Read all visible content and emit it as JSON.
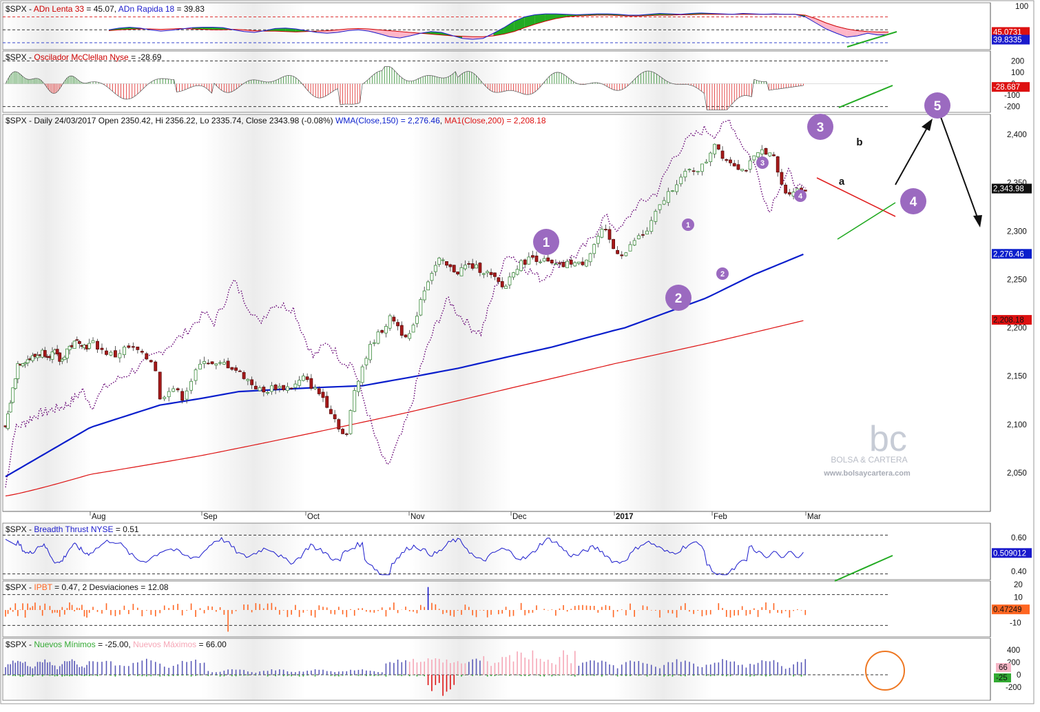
{
  "chart_data": [
    {
      "type": "line",
      "panel": "adn",
      "title_prefix": "$SPX - ",
      "series": [
        {
          "name": "ADn Lenta 33",
          "value_text": "= 45.07",
          "color": "#cc0000",
          "last_label": "45.0731"
        },
        {
          "name": "ADn Rapida 18",
          "value_text": "= 39.83",
          "color": "#1a1acc",
          "last_label": "39.8335"
        }
      ],
      "y_ticks": [
        "100"
      ],
      "levels": [
        80,
        50,
        20
      ],
      "fill_up_color": "#22aa22",
      "fill_down_color": "#ffb6c8",
      "series_values_slow": [
        48,
        50,
        51,
        52,
        52,
        51,
        52,
        53,
        52,
        51,
        50,
        50,
        51,
        50,
        48,
        47,
        47,
        46,
        45,
        46,
        47,
        48,
        50,
        52,
        53,
        52,
        50,
        48,
        46,
        44,
        42,
        40,
        38,
        36,
        35,
        34,
        34,
        36,
        40,
        46,
        55,
        63,
        70,
        76,
        80,
        82,
        83,
        84,
        84,
        83,
        82,
        82,
        83,
        84,
        84,
        85,
        85,
        86,
        86,
        86,
        86,
        86,
        86,
        86,
        86,
        86,
        86,
        84,
        76,
        66,
        58,
        52,
        48,
        46,
        45,
        45
      ],
      "series_values_fast": [
        50,
        54,
        56,
        54,
        50,
        47,
        49,
        52,
        55,
        56,
        56,
        55,
        50,
        46,
        44,
        48,
        53,
        54,
        52,
        48,
        44,
        42,
        44,
        48,
        50,
        47,
        41,
        34,
        31,
        36,
        42,
        46,
        44,
        37,
        30,
        28,
        30,
        42,
        55,
        70,
        80,
        85,
        87,
        87,
        86,
        85,
        86,
        87,
        87,
        86,
        84,
        84,
        86,
        88,
        87,
        86,
        88,
        89,
        88,
        87,
        86,
        88,
        87,
        86,
        87,
        86,
        86,
        80,
        66,
        52,
        42,
        33,
        36,
        42,
        38,
        39
      ]
    },
    {
      "type": "bar",
      "panel": "mcclellan",
      "title_prefix": "$SPX - ",
      "series_name": "Oscilador McClellan Nyse",
      "value_text": "= -28.69",
      "y_ticks": [
        "200",
        "100",
        "0",
        "-100",
        "-200"
      ],
      "last_label": "-28.687",
      "levels": [
        200,
        -200
      ],
      "positive_color": "#2a8a2a",
      "negative_color": "#dd2222"
    },
    {
      "type": "candlestick",
      "panel": "price",
      "title": "$SPX - Daily 24/03/2017 Open 2350.42, Hi 2356.22, Lo 2335.74, Close 2343.98 (-0.08%)",
      "wma_label": "WMA(Close,150) = 2,276.46",
      "ma_label": "MA1(Close,200) = 2,208.18",
      "wma_color": "#0a1ecc",
      "ma_color": "#dd1111",
      "breadth_overlay_color": "#6a0a78",
      "up_color": "#3a8a3a",
      "down_color": "#a81a1a",
      "y_ticks": [
        "2,400",
        "2,350",
        "2,300",
        "2,250",
        "2,200",
        "2,150",
        "2,100",
        "2,050"
      ],
      "y_values": [
        2400,
        2350,
        2300,
        2250,
        2200,
        2150,
        2100,
        2050
      ],
      "ylim": [
        2020,
        2440
      ],
      "x_labels": [
        "Aug",
        "Sep",
        "Oct",
        "Nov",
        "Dec",
        "2017",
        "Feb",
        "Mar"
      ],
      "last_close_label": "2,343.98",
      "wma_last_label": "2,276.46",
      "ma_last_label": "2,208.18",
      "close_path": [
        [
          0,
          2097
        ],
        [
          4,
          2130
        ],
        [
          8,
          2163
        ],
        [
          12,
          2166
        ],
        [
          16,
          2168
        ],
        [
          20,
          2171
        ],
        [
          24,
          2175
        ],
        [
          28,
          2172
        ],
        [
          32,
          2174
        ],
        [
          36,
          2164
        ],
        [
          40,
          2178
        ],
        [
          44,
          2183
        ],
        [
          48,
          2187
        ],
        [
          52,
          2180
        ],
        [
          56,
          2184
        ],
        [
          60,
          2175
        ],
        [
          64,
          2171
        ],
        [
          68,
          2180
        ],
        [
          72,
          2176
        ],
        [
          74,
          2170
        ],
        [
          78,
          2165
        ],
        [
          80,
          2125
        ],
        [
          84,
          2140
        ],
        [
          88,
          2128
        ],
        [
          92,
          2150
        ],
        [
          96,
          2168
        ],
        [
          100,
          2160
        ],
        [
          104,
          2163
        ],
        [
          108,
          2158
        ],
        [
          112,
          2150
        ],
        [
          116,
          2140
        ],
        [
          120,
          2133
        ],
        [
          124,
          2139
        ],
        [
          128,
          2138
        ],
        [
          132,
          2139
        ],
        [
          136,
          2148
        ],
        [
          140,
          2138
        ],
        [
          144,
          2128
        ],
        [
          148,
          2110
        ],
        [
          152,
          2090
        ],
        [
          154,
          2088
        ],
        [
          156,
          2130
        ],
        [
          160,
          2160
        ],
        [
          164,
          2185
        ],
        [
          168,
          2198
        ],
        [
          172,
          2212
        ],
        [
          176,
          2195
        ],
        [
          180,
          2192
        ],
        [
          184,
          2230
        ],
        [
          188,
          2255
        ],
        [
          192,
          2270
        ],
        [
          196,
          2262
        ],
        [
          200,
          2258
        ],
        [
          204,
          2265
        ],
        [
          208,
          2262
        ],
        [
          212,
          2258
        ],
        [
          216,
          2250
        ],
        [
          220,
          2240
        ],
        [
          224,
          2260
        ],
        [
          228,
          2268
        ],
        [
          232,
          2273
        ],
        [
          236,
          2270
        ],
        [
          240,
          2265
        ],
        [
          244,
          2263
        ],
        [
          248,
          2268
        ],
        [
          252,
          2265
        ],
        [
          256,
          2278
        ],
        [
          260,
          2298
        ],
        [
          262,
          2300
        ],
        [
          266,
          2280
        ],
        [
          270,
          2276
        ],
        [
          274,
          2292
        ],
        [
          278,
          2298
        ],
        [
          282,
          2320
        ],
        [
          286,
          2338
        ],
        [
          290,
          2352
        ],
        [
          294,
          2362
        ],
        [
          298,
          2365
        ],
        [
          300,
          2368
        ],
        [
          304,
          2392
        ],
        [
          308,
          2375
        ],
        [
          312,
          2370
        ],
        [
          316,
          2362
        ],
        [
          320,
          2375
        ],
        [
          324,
          2385
        ],
        [
          328,
          2375
        ],
        [
          332,
          2340
        ],
        [
          336,
          2342
        ],
        [
          340,
          2344
        ]
      ]
    },
    {
      "type": "line",
      "panel": "breadth",
      "title_prefix": "$SPX - ",
      "series_name": "Breadth Thrust NYSE",
      "value_text": "= 0.51",
      "color": "#1a1acc",
      "y_ticks": [
        "0.60",
        "0.40"
      ],
      "last_label": "0.509012",
      "levels": [
        0.615,
        0.385
      ]
    },
    {
      "type": "bar",
      "panel": "ipbt",
      "title_prefix": "$SPX - ",
      "series_name": "IPBT",
      "value_text": "= 0.47,",
      "extra_text": "2 Desviaciones = 12.08",
      "color": "#ff6622",
      "spike_color": "#1a1acc",
      "y_ticks": [
        "20",
        "10",
        "0",
        "-10"
      ],
      "last_label": "0.47249",
      "levels": [
        12.08,
        -12.08
      ]
    },
    {
      "type": "bar",
      "panel": "minmax",
      "title_prefix": "$SPX - ",
      "series": [
        {
          "name": "Nuevos Mínimos",
          "value_text": "= -25.00,",
          "color": "#33aa33",
          "last_label": "-25"
        },
        {
          "name": "Nuevos Máximos",
          "value_text": "= 66.00",
          "color": "#f6a6b6",
          "last_label": "66"
        }
      ],
      "blue_color": "#5a5ab8",
      "y_ticks": [
        "400",
        "200",
        "0",
        "-200"
      ]
    }
  ],
  "annotations": {
    "primary_waves": [
      "1",
      "2",
      "3",
      "4",
      "5"
    ],
    "minor_waves": [
      "1",
      "2",
      "3",
      "4"
    ],
    "corrective_labels": [
      "a",
      "b"
    ],
    "wave_circle_color": "#9b6ac0"
  },
  "watermark": {
    "logo_text": "bc",
    "brand": "BOLSA & CARTERA",
    "url": "www.bolsaycartera.com"
  }
}
